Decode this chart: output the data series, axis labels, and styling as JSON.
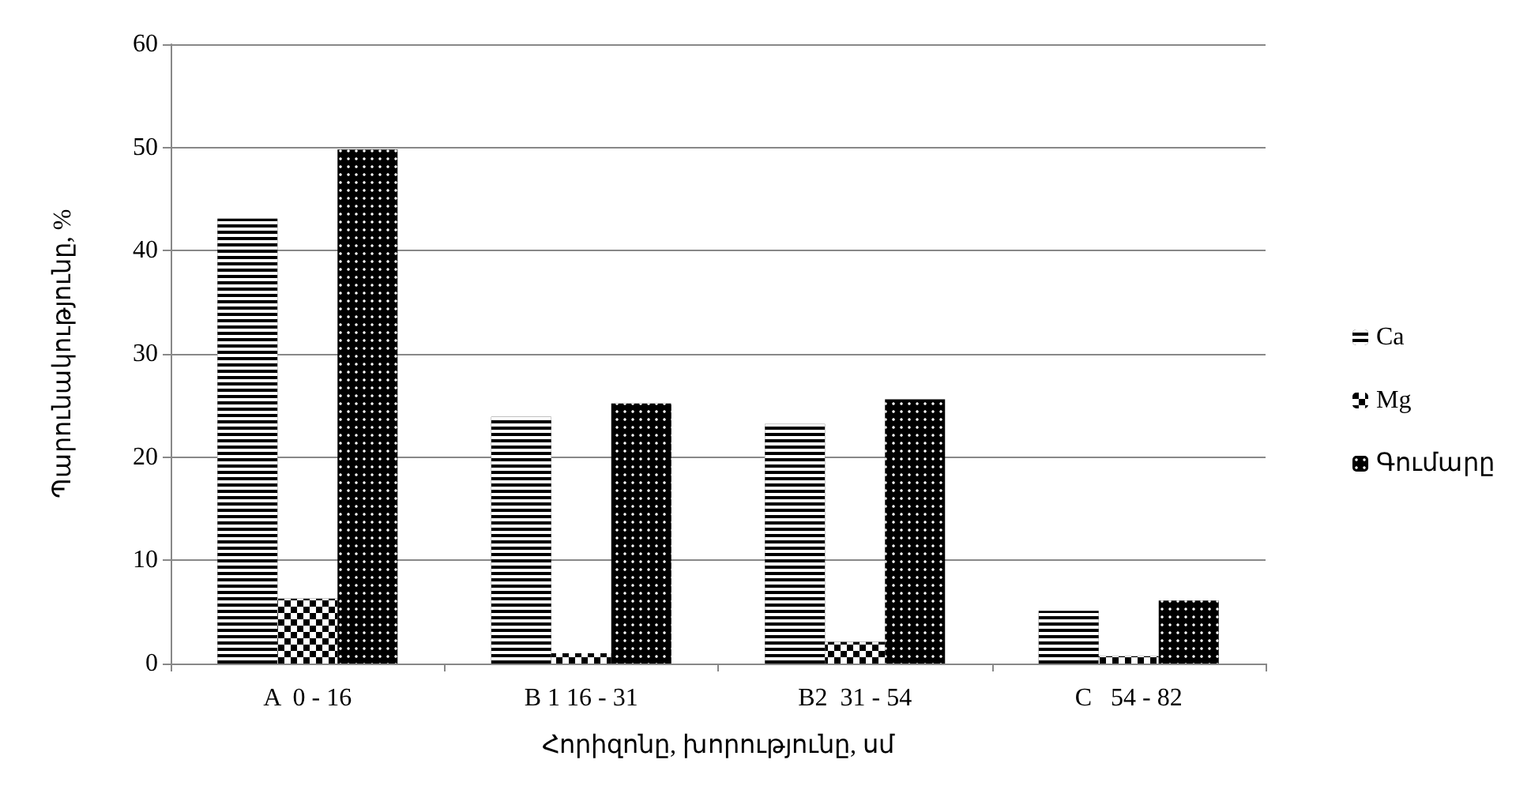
{
  "chart_data": {
    "type": "bar",
    "xlabel": "Հորիզոնը, խորությունը, սմ",
    "ylabel": "Պարունակությունը, %",
    "categories": [
      "A  0 - 16",
      "B 1 16 - 31",
      "B2  31 - 54",
      "C   54 - 82"
    ],
    "series": [
      {
        "name": "Ca",
        "color": "#000000",
        "values": [
          43.1,
          23.9,
          23.2,
          5.1
        ]
      },
      {
        "name": "Mg",
        "color": "#000000",
        "values": [
          6.3,
          1.0,
          2.1,
          0.7
        ]
      },
      {
        "name": "Գումարը",
        "color": "#000000",
        "values": [
          49.8,
          25.2,
          25.6,
          6.1
        ]
      }
    ],
    "ylim": [
      0,
      60
    ],
    "yticks": [
      0,
      10,
      20,
      30,
      40,
      50,
      60
    ],
    "grid": "y",
    "legend": "right"
  }
}
